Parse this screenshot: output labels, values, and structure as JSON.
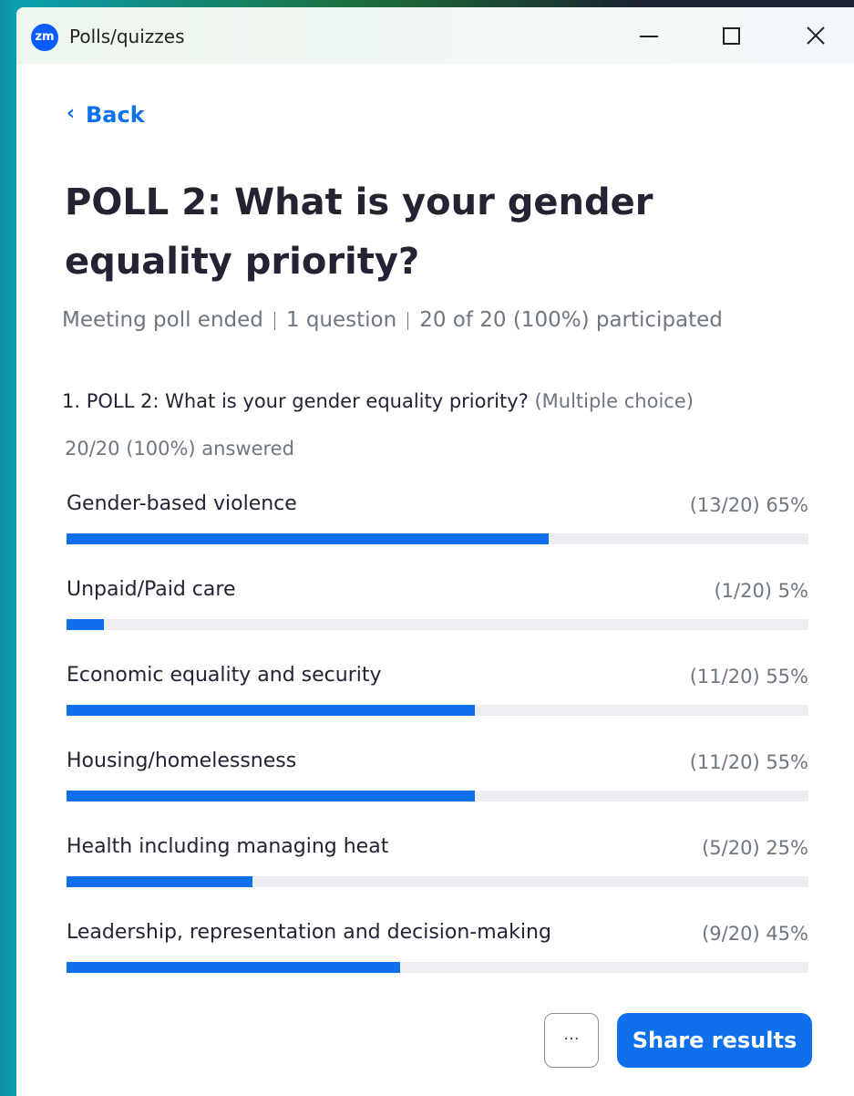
{
  "window": {
    "logo": "zm",
    "title": "Polls/quizzes"
  },
  "back": "Back",
  "title": "POLL 2: What is your gender equality priority?",
  "meta": [
    "Meeting poll ended",
    "1 question",
    "20 of 20 (100%) participated"
  ],
  "question": {
    "text": "1. POLL 2: What is your gender equality priority?",
    "kind": "(Multiple choice)",
    "answered": "20/20 (100%) answered"
  },
  "poll": {
    "xlim": [
      0,
      100
    ],
    "color": "#0e71eb",
    "options": [
      "Gender-based violence",
      "Unpaid/Paid care",
      "Economic equality and security",
      "Housing/homelessness",
      "Health including managing heat",
      "Leadership, representation and decision-making"
    ],
    "values": [
      65,
      5,
      55,
      55,
      25,
      45
    ],
    "value_labels": [
      "(13/20) 65%",
      "(1/20) 5%",
      "(11/20) 55%",
      "(11/20) 55%",
      "(5/20) 25%",
      "(9/20) 45%"
    ]
  },
  "buttons": {
    "more": "···",
    "share": "Share results"
  }
}
